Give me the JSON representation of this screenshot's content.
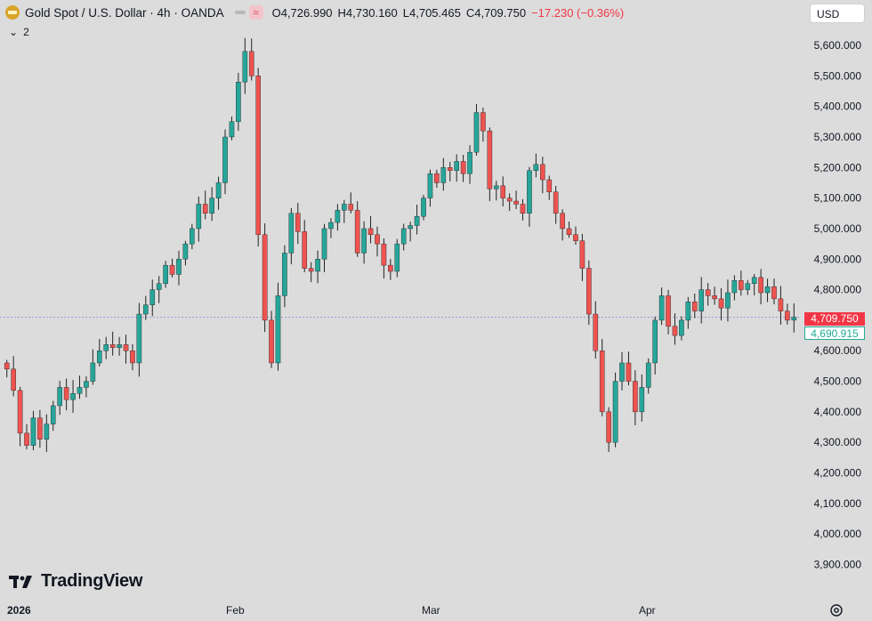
{
  "header": {
    "symbol_title": "Gold Spot / U.S. Dollar · 4h · OANDA",
    "open": "O4,726.990",
    "high": "H4,730.160",
    "low": "L4,705.465",
    "close": "C4,709.750",
    "change": "−17.230 (−0.36%)",
    "change_color": "#f23645",
    "currency": "USD",
    "indicator_toggle": "2"
  },
  "price_tags": {
    "last": "4,709.750",
    "second": "4,690.915"
  },
  "branding": {
    "name": "TradingView"
  },
  "colors": {
    "background": "#dcdcdc",
    "up": "#26a69a",
    "down": "#ef5350",
    "wick": "#222222"
  },
  "chart_data": {
    "type": "candlestick",
    "title": "Gold Spot / U.S. Dollar",
    "interval": "4h",
    "ylim": [
      3840,
      5660
    ],
    "yticks": [
      "5,600.000",
      "5,500.000",
      "5,400.000",
      "5,300.000",
      "5,200.000",
      "5,100.000",
      "5,000.000",
      "4,900.000",
      "4,800.000",
      "4,700.000",
      "4,600.000",
      "4,500.000",
      "4,400.000",
      "4,300.000",
      "4,200.000",
      "4,100.000",
      "4,000.000",
      "3,900.000"
    ],
    "xticks": [
      "2026",
      "Feb",
      "Mar",
      "Apr"
    ],
    "grid": false,
    "last_price": 4709.75,
    "series": [
      {
        "name": "Gold Spot / U.S. Dollar",
        "values": [
          4540,
          4470,
          4330,
          4290,
          4380,
          4310,
          4360,
          4420,
          4480,
          4440,
          4460,
          4480,
          4500,
          4560,
          4600,
          4620,
          4610,
          4620,
          4600,
          4560,
          4720,
          4750,
          4800,
          4820,
          4880,
          4850,
          4900,
          4950,
          5000,
          5080,
          5050,
          5100,
          5150,
          5300,
          5350,
          5480,
          5580,
          5500,
          4980,
          4700,
          4560,
          4780,
          4920,
          5050,
          4990,
          4870,
          4860,
          4900,
          5000,
          5020,
          5060,
          5080,
          5060,
          4920,
          5000,
          4980,
          4950,
          4880,
          4860,
          4950,
          5000,
          5010,
          5040,
          5100,
          5180,
          5150,
          5200,
          5190,
          5220,
          5180,
          5250,
          5380,
          5320,
          5130,
          5140,
          5100,
          5090,
          5080,
          5050,
          5190,
          5210,
          5160,
          5120,
          5050,
          5000,
          4980,
          4960,
          4870,
          4720,
          4600,
          4400,
          4300,
          4500,
          4560,
          4500,
          4400,
          4480,
          4560,
          4700,
          4780,
          4680,
          4650,
          4700,
          4760,
          4730,
          4800,
          4780,
          4770,
          4740,
          4790,
          4830,
          4800,
          4820,
          4840,
          4790,
          4810,
          4770,
          4730,
          4700,
          4710
        ]
      }
    ]
  }
}
